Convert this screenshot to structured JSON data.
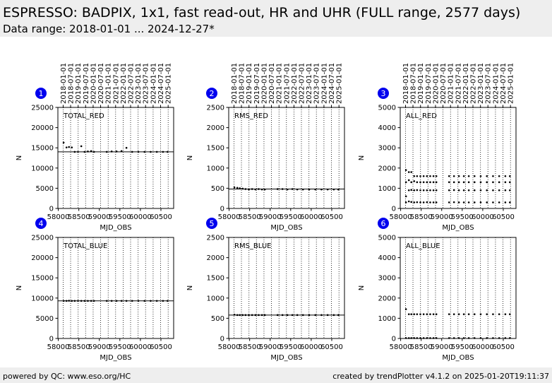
{
  "header": {
    "title": "ESPRESSO: BADPIX, 1x1, fast read-out, HR and UHR (FULL range, 2577 days)",
    "subtitle": "Data range: 2018-01-01 ... 2024-12-27*"
  },
  "footer": {
    "left": "powered by QC: www.eso.org/HC",
    "right": "created by trendPlotter v4.1.2 on 2025-01-20T19:11:37"
  },
  "chart_data": [
    {
      "type": "scatter",
      "badge": "1",
      "label": "TOTAL_RED",
      "xlabel": "MJD_OBS",
      "ylabel": "N",
      "xlim": [
        57990,
        60810
      ],
      "xticks": [
        58000,
        58500,
        59000,
        59500,
        60000,
        60500
      ],
      "x2ticks": [
        {
          "value": 58119,
          "label": "2018-01-01"
        },
        {
          "value": 58300,
          "label": "2018-07-01"
        },
        {
          "value": 58484,
          "label": "2019-01-01"
        },
        {
          "value": 58665,
          "label": "2019-07-01"
        },
        {
          "value": 58849,
          "label": "2020-01-01"
        },
        {
          "value": 59031,
          "label": "2020-07-01"
        },
        {
          "value": 59215,
          "label": "2021-01-01"
        },
        {
          "value": 59396,
          "label": "2021-07-01"
        },
        {
          "value": 59580,
          "label": "2022-01-01"
        },
        {
          "value": 59761,
          "label": "2022-07-01"
        },
        {
          "value": 59945,
          "label": "2023-01-01"
        },
        {
          "value": 60126,
          "label": "2023-07-01"
        },
        {
          "value": 60310,
          "label": "2024-01-01"
        },
        {
          "value": 60492,
          "label": "2024-07-01"
        },
        {
          "value": 60676,
          "label": "2025-01-01"
        }
      ],
      "ylim": [
        0,
        25000
      ],
      "yticks": [
        0,
        5000,
        10000,
        15000,
        20000,
        25000
      ],
      "hline": 14000,
      "grid": true,
      "x": [
        58130,
        58200,
        58260,
        58330,
        58400,
        58480,
        58560,
        58640,
        58720,
        58800,
        58870,
        59180,
        59300,
        59420,
        59540,
        59660,
        59800,
        59950,
        60100,
        60250,
        60400,
        60550,
        60660
      ],
      "series": [
        {
          "color": "#000000",
          "values": [
            16300,
            15100,
            15200,
            15100,
            14000,
            14000,
            15400,
            14000,
            14100,
            14200,
            14000,
            14000,
            14100,
            14100,
            14200,
            15000,
            14000,
            14000,
            14000,
            14000,
            14000,
            14000,
            14000
          ]
        }
      ]
    },
    {
      "type": "scatter",
      "badge": "2",
      "label": "RMS_RED",
      "xlabel": "MJD_OBS",
      "ylabel": "N",
      "xlim": [
        57990,
        60810
      ],
      "xticks": [
        58000,
        58500,
        59000,
        59500,
        60000,
        60500
      ],
      "x2ticks": [
        {
          "value": 58119,
          "label": "2018-01-01"
        },
        {
          "value": 58300,
          "label": "2018-07-01"
        },
        {
          "value": 58484,
          "label": "2019-01-01"
        },
        {
          "value": 58665,
          "label": "2019-07-01"
        },
        {
          "value": 58849,
          "label": "2020-01-01"
        },
        {
          "value": 59031,
          "label": "2020-07-01"
        },
        {
          "value": 59215,
          "label": "2021-01-01"
        },
        {
          "value": 59396,
          "label": "2021-07-01"
        },
        {
          "value": 59580,
          "label": "2022-01-01"
        },
        {
          "value": 59761,
          "label": "2022-07-01"
        },
        {
          "value": 59945,
          "label": "2023-01-01"
        },
        {
          "value": 60126,
          "label": "2023-07-01"
        },
        {
          "value": 60310,
          "label": "2024-01-01"
        },
        {
          "value": 60492,
          "label": "2024-07-01"
        },
        {
          "value": 60676,
          "label": "2025-01-01"
        }
      ],
      "ylim": [
        0,
        2500
      ],
      "yticks": [
        0,
        500,
        1000,
        1500,
        2000,
        2500
      ],
      "hline": 480,
      "grid": true,
      "x": [
        58130,
        58200,
        58260,
        58330,
        58400,
        58480,
        58560,
        58640,
        58720,
        58800,
        58870,
        59180,
        59300,
        59420,
        59540,
        59660,
        59800,
        59950,
        60100,
        60250,
        60400,
        60550,
        60660
      ],
      "series": [
        {
          "color": "#000000",
          "values": [
            520,
            510,
            500,
            490,
            480,
            470,
            480,
            470,
            480,
            470,
            470,
            480,
            480,
            470,
            480,
            470,
            470,
            470,
            470,
            470,
            470,
            470,
            470
          ]
        }
      ]
    },
    {
      "type": "scatter",
      "badge": "3",
      "label": "ALL_RED",
      "xlabel": "MJD_OBS",
      "ylabel": "N",
      "xlim": [
        57990,
        60810
      ],
      "xticks": [
        58000,
        58500,
        59000,
        59500,
        60000,
        60500
      ],
      "x2ticks": [
        {
          "value": 58119,
          "label": "2018-01-01"
        },
        {
          "value": 58300,
          "label": "2018-07-01"
        },
        {
          "value": 58484,
          "label": "2019-01-01"
        },
        {
          "value": 58665,
          "label": "2019-07-01"
        },
        {
          "value": 58849,
          "label": "2020-01-01"
        },
        {
          "value": 59031,
          "label": "2020-07-01"
        },
        {
          "value": 59215,
          "label": "2021-01-01"
        },
        {
          "value": 59396,
          "label": "2021-07-01"
        },
        {
          "value": 59580,
          "label": "2022-01-01"
        },
        {
          "value": 59761,
          "label": "2022-07-01"
        },
        {
          "value": 59945,
          "label": "2023-01-01"
        },
        {
          "value": 60126,
          "label": "2023-07-01"
        },
        {
          "value": 60310,
          "label": "2024-01-01"
        },
        {
          "value": 60492,
          "label": "2024-07-01"
        },
        {
          "value": 60676,
          "label": "2025-01-01"
        }
      ],
      "ylim": [
        0,
        5000
      ],
      "yticks": [
        0,
        1000,
        2000,
        3000,
        4000,
        5000
      ],
      "grid": true,
      "x": [
        58130,
        58200,
        58260,
        58330,
        58400,
        58480,
        58560,
        58640,
        58720,
        58800,
        58870,
        59180,
        59300,
        59420,
        59540,
        59660,
        59800,
        59950,
        60100,
        60250,
        60400,
        60550,
        60660
      ],
      "series": [
        {
          "color": "#000000",
          "values": [
            300,
            350,
            320,
            300,
            310,
            300,
            300,
            310,
            300,
            300,
            300,
            300,
            310,
            300,
            300,
            300,
            300,
            300,
            300,
            300,
            300,
            300,
            300
          ]
        },
        {
          "color": "#000000",
          "values": [
            600,
            900,
            920,
            900,
            910,
            900,
            900,
            900,
            900,
            900,
            900,
            900,
            910,
            900,
            900,
            900,
            900,
            900,
            900,
            900,
            900,
            900,
            900
          ]
        },
        {
          "color": "#000000",
          "values": [
            1300,
            1400,
            1300,
            1350,
            1300,
            1300,
            1300,
            1300,
            1300,
            1300,
            1300,
            1300,
            1300,
            1300,
            1300,
            1300,
            1300,
            1300,
            1300,
            1300,
            1300,
            1300,
            1300
          ]
        },
        {
          "color": "#000000",
          "values": [
            1900,
            1800,
            1800,
            1600,
            1600,
            1600,
            1600,
            1600,
            1600,
            1600,
            1600,
            1600,
            1600,
            1600,
            1600,
            1600,
            1600,
            1600,
            1600,
            1600,
            1600,
            1600,
            1600
          ]
        }
      ]
    },
    {
      "type": "scatter",
      "badge": "4",
      "label": "TOTAL_BLUE",
      "xlabel": "MJD_OBS",
      "ylabel": "N",
      "xlim": [
        57990,
        60810
      ],
      "xticks": [
        58000,
        58500,
        59000,
        59500,
        60000,
        60500
      ],
      "xgrid": [
        58119,
        58300,
        58484,
        58665,
        58849,
        59031,
        59215,
        59396,
        59580,
        59761,
        59945,
        60126,
        60310,
        60492,
        60676
      ],
      "ylim": [
        0,
        25000
      ],
      "yticks": [
        0,
        5000,
        10000,
        15000,
        20000,
        25000
      ],
      "hline": 9300,
      "grid": true,
      "x": [
        58130,
        58200,
        58260,
        58330,
        58400,
        58480,
        58560,
        58640,
        58720,
        58800,
        58870,
        59180,
        59300,
        59420,
        59540,
        59660,
        59800,
        59950,
        60100,
        60250,
        60400,
        60550,
        60660
      ],
      "series": [
        {
          "color": "#000000",
          "values": [
            9300,
            9300,
            9350,
            9300,
            9300,
            9300,
            9300,
            9300,
            9300,
            9300,
            9300,
            9300,
            9300,
            9300,
            9300,
            9300,
            9300,
            9300,
            9300,
            9300,
            9300,
            9300,
            9300
          ]
        }
      ]
    },
    {
      "type": "scatter",
      "badge": "5",
      "label": "RMS_BLUE",
      "xlabel": "MJD_OBS",
      "ylabel": "N",
      "xlim": [
        57990,
        60810
      ],
      "xticks": [
        58000,
        58500,
        59000,
        59500,
        60000,
        60500
      ],
      "xgrid": [
        58119,
        58300,
        58484,
        58665,
        58849,
        59031,
        59215,
        59396,
        59580,
        59761,
        59945,
        60126,
        60310,
        60492,
        60676
      ],
      "ylim": [
        0,
        2500
      ],
      "yticks": [
        0,
        500,
        1000,
        1500,
        2000,
        2500
      ],
      "hline": 580,
      "grid": true,
      "x": [
        58130,
        58200,
        58260,
        58330,
        58400,
        58480,
        58560,
        58640,
        58720,
        58800,
        58870,
        59180,
        59300,
        59420,
        59540,
        59660,
        59800,
        59950,
        60100,
        60250,
        60400,
        60550,
        60660
      ],
      "series": [
        {
          "color": "#000000",
          "values": [
            590,
            580,
            580,
            580,
            580,
            580,
            580,
            580,
            580,
            580,
            580,
            580,
            580,
            580,
            580,
            580,
            580,
            580,
            580,
            580,
            580,
            580,
            580
          ]
        }
      ]
    },
    {
      "type": "scatter",
      "badge": "6",
      "label": "ALL_BLUE",
      "xlabel": "MJD_OBS",
      "ylabel": "N",
      "xlim": [
        57990,
        60810
      ],
      "xticks": [
        58000,
        58500,
        59000,
        59500,
        60000,
        60500
      ],
      "xgrid": [
        58119,
        58300,
        58484,
        58665,
        58849,
        59031,
        59215,
        59396,
        59580,
        59761,
        59945,
        60126,
        60310,
        60492,
        60676
      ],
      "ylim": [
        0,
        5000
      ],
      "yticks": [
        0,
        1000,
        2000,
        3000,
        4000,
        5000
      ],
      "grid": true,
      "x": [
        58130,
        58200,
        58260,
        58330,
        58400,
        58480,
        58560,
        58640,
        58720,
        58800,
        58870,
        59180,
        59300,
        59420,
        59540,
        59660,
        59800,
        59950,
        60100,
        60250,
        60400,
        60550,
        60660
      ],
      "series": [
        {
          "color": "#000000",
          "values": [
            1450,
            1200,
            1200,
            1200,
            1200,
            1200,
            1200,
            1200,
            1200,
            1200,
            1200,
            1200,
            1200,
            1200,
            1200,
            1200,
            1200,
            1200,
            1200,
            1200,
            1200,
            1200,
            1200
          ]
        },
        {
          "color": "#000000",
          "values": [
            20,
            20,
            20,
            20,
            20,
            20,
            20,
            20,
            20,
            20,
            20,
            20,
            20,
            20,
            20,
            20,
            20,
            20,
            20,
            20,
            20,
            20,
            20
          ]
        }
      ]
    }
  ]
}
